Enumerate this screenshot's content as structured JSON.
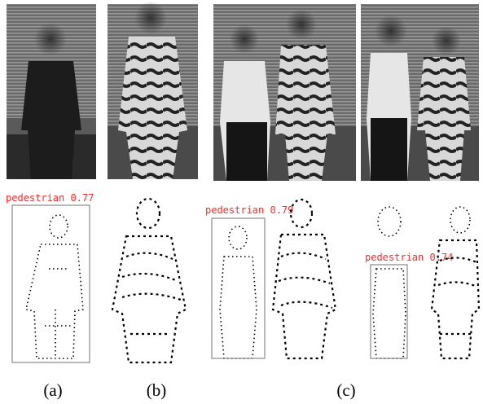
{
  "detections": [
    {
      "label": "pedestrian 0.77"
    },
    {
      "label": "pedestrian 0.79"
    },
    {
      "label": "pedestrian 0.74"
    }
  ],
  "captions": [
    "(a)",
    "(b)",
    "(c)"
  ]
}
